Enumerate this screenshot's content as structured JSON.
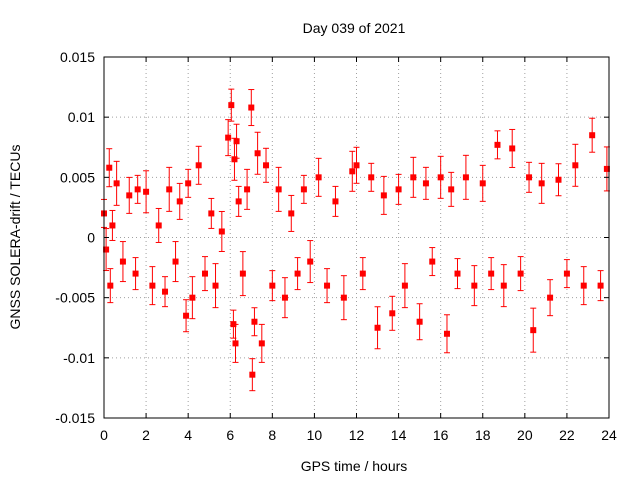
{
  "chart_data": {
    "type": "scatter",
    "title": "Day 039 of 2021",
    "xlabel": "GPS time / hours",
    "ylabel": "GNSS SOLERA-drift / TECUs",
    "xlim": [
      0,
      24
    ],
    "ylim": [
      -0.015,
      0.015
    ],
    "x_ticks": [
      0,
      2,
      4,
      6,
      8,
      10,
      12,
      14,
      16,
      18,
      20,
      22,
      24
    ],
    "x_tick_labels": [
      "0",
      "2",
      "4",
      "6",
      "8",
      "10",
      "12",
      "14",
      "16",
      "18",
      "20",
      "22",
      "24"
    ],
    "y_ticks": [
      -0.015,
      -0.01,
      -0.005,
      0,
      0.005,
      0.01,
      0.015
    ],
    "y_tick_labels": [
      "-0.015",
      "-0.01",
      "-0.005",
      "0",
      "0.005",
      "0.01",
      "0.015"
    ],
    "grid": true,
    "series_color": "#ff0000",
    "marker": "square",
    "error_bars": true,
    "series": [
      {
        "x": [
          0.0,
          0.1,
          0.25,
          0.3,
          0.4,
          0.6,
          0.9,
          1.2,
          1.5,
          1.6,
          2.0,
          2.3,
          2.6,
          2.9,
          3.1,
          3.4,
          3.6,
          3.9,
          4.0,
          4.2,
          4.5,
          4.8,
          5.1,
          5.3,
          5.6,
          5.9,
          6.05,
          6.15,
          6.2,
          6.25,
          6.3,
          6.4,
          6.6,
          6.8,
          7.0,
          7.05,
          7.15,
          7.3,
          7.5,
          7.7,
          8.0,
          8.3,
          8.6,
          8.9,
          9.2,
          9.5,
          9.8,
          10.2,
          10.6,
          11.0,
          11.4,
          11.8,
          12.0,
          12.3,
          12.7,
          13.0,
          13.3,
          13.7,
          14.0,
          14.3,
          14.7,
          15.0,
          15.3,
          15.6,
          16.0,
          16.3,
          16.5,
          16.8,
          17.2,
          17.6,
          18.0,
          18.4,
          18.7,
          19.0,
          19.4,
          19.8,
          20.2,
          20.4,
          20.8,
          21.2,
          21.6,
          22.0,
          22.4,
          22.8,
          23.2,
          23.6,
          23.9
        ],
        "y": [
          0.002,
          -0.001,
          0.0058,
          -0.004,
          0.001,
          0.0045,
          -0.002,
          0.0035,
          -0.003,
          0.004,
          0.0038,
          -0.004,
          0.001,
          -0.0045,
          0.004,
          -0.002,
          0.003,
          -0.0065,
          0.0045,
          -0.005,
          0.006,
          -0.003,
          0.002,
          -0.004,
          0.0005,
          0.0083,
          0.011,
          -0.0072,
          0.0065,
          -0.0088,
          0.008,
          0.003,
          -0.003,
          0.004,
          0.0108,
          -0.0114,
          -0.007,
          0.007,
          -0.0088,
          0.006,
          -0.004,
          0.004,
          -0.005,
          0.002,
          -0.003,
          0.004,
          -0.002,
          0.005,
          -0.004,
          0.003,
          -0.005,
          0.0055,
          0.006,
          -0.003,
          0.005,
          -0.0075,
          0.0035,
          -0.0063,
          0.004,
          -0.004,
          0.005,
          -0.007,
          0.0045,
          -0.002,
          0.005,
          -0.008,
          0.004,
          -0.003,
          0.005,
          -0.004,
          0.0045,
          -0.003,
          0.0077,
          -0.004,
          0.0074,
          -0.003,
          0.005,
          -0.0077,
          0.0045,
          -0.005,
          0.0048,
          -0.003,
          0.006,
          -0.004,
          0.0085,
          -0.004,
          0.0057
        ]
      }
    ]
  }
}
